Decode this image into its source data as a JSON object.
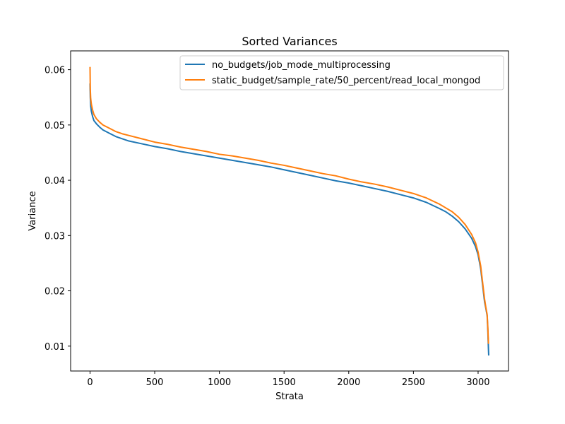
{
  "chart_data": {
    "type": "line",
    "title": "Sorted Variances",
    "xlabel": "Strata",
    "ylabel": "Variance",
    "xlim": [
      -150,
      3235
    ],
    "ylim": [
      0.0055,
      0.0634
    ],
    "xticks": [
      0,
      500,
      1000,
      1500,
      2000,
      2500,
      3000
    ],
    "yticks": [
      0.01,
      0.02,
      0.03,
      0.04,
      0.05,
      0.06
    ],
    "xtick_labels": [
      "0",
      "500",
      "1000",
      "1500",
      "2000",
      "2500",
      "3000"
    ],
    "ytick_labels": [
      "0.01",
      "0.02",
      "0.03",
      "0.04",
      "0.05",
      "0.06"
    ],
    "grid": false,
    "legend_position": "top-right",
    "series": [
      {
        "name": "no_budgets/job_mode_multiprocessing",
        "color": "#1f77b4",
        "x": [
          0,
          2,
          5,
          10,
          20,
          30,
          50,
          75,
          100,
          150,
          200,
          250,
          300,
          400,
          500,
          600,
          700,
          800,
          900,
          1000,
          1100,
          1200,
          1300,
          1400,
          1500,
          1600,
          1700,
          1800,
          1900,
          2000,
          2100,
          2200,
          2300,
          2400,
          2500,
          2600,
          2700,
          2750,
          2800,
          2850,
          2900,
          2950,
          2980,
          3000,
          3020,
          3040,
          3050,
          3060,
          3070,
          3075,
          3080,
          3082
        ],
        "y": [
          0.0575,
          0.055,
          0.0535,
          0.0525,
          0.0515,
          0.0508,
          0.0502,
          0.0496,
          0.0491,
          0.0485,
          0.0479,
          0.0475,
          0.0471,
          0.0466,
          0.0461,
          0.0457,
          0.0452,
          0.0448,
          0.0444,
          0.044,
          0.0436,
          0.0432,
          0.0428,
          0.0424,
          0.0419,
          0.0414,
          0.0409,
          0.0404,
          0.0399,
          0.0395,
          0.039,
          0.0385,
          0.038,
          0.0374,
          0.0368,
          0.036,
          0.0349,
          0.0343,
          0.0335,
          0.0325,
          0.0312,
          0.0295,
          0.028,
          0.0265,
          0.024,
          0.02,
          0.018,
          0.0168,
          0.0155,
          0.013,
          0.0095,
          0.0083
        ]
      },
      {
        "name": "static_budget/sample_rate/50_percent/read_local_mongod",
        "color": "#ff7f0e",
        "x": [
          0,
          2,
          5,
          10,
          20,
          30,
          50,
          75,
          100,
          150,
          200,
          250,
          300,
          400,
          500,
          600,
          700,
          800,
          900,
          1000,
          1100,
          1200,
          1300,
          1400,
          1500,
          1600,
          1700,
          1800,
          1900,
          2000,
          2100,
          2200,
          2300,
          2400,
          2500,
          2600,
          2700,
          2750,
          2800,
          2850,
          2900,
          2950,
          2980,
          3000,
          3020,
          3040,
          3050,
          3060,
          3070,
          3075,
          3080,
          3082
        ],
        "y": [
          0.0605,
          0.0565,
          0.0548,
          0.0538,
          0.0527,
          0.0519,
          0.0511,
          0.0505,
          0.05,
          0.0494,
          0.0488,
          0.0484,
          0.0481,
          0.0475,
          0.0469,
          0.0465,
          0.046,
          0.0456,
          0.0452,
          0.0447,
          0.0444,
          0.044,
          0.0436,
          0.0431,
          0.0427,
          0.0422,
          0.0417,
          0.0412,
          0.0408,
          0.0402,
          0.0397,
          0.0393,
          0.0388,
          0.0382,
          0.0376,
          0.0368,
          0.0357,
          0.035,
          0.0343,
          0.0333,
          0.032,
          0.0302,
          0.0287,
          0.027,
          0.0245,
          0.0205,
          0.0185,
          0.017,
          0.0157,
          0.0135,
          0.0105,
          0.0105
        ]
      }
    ]
  }
}
